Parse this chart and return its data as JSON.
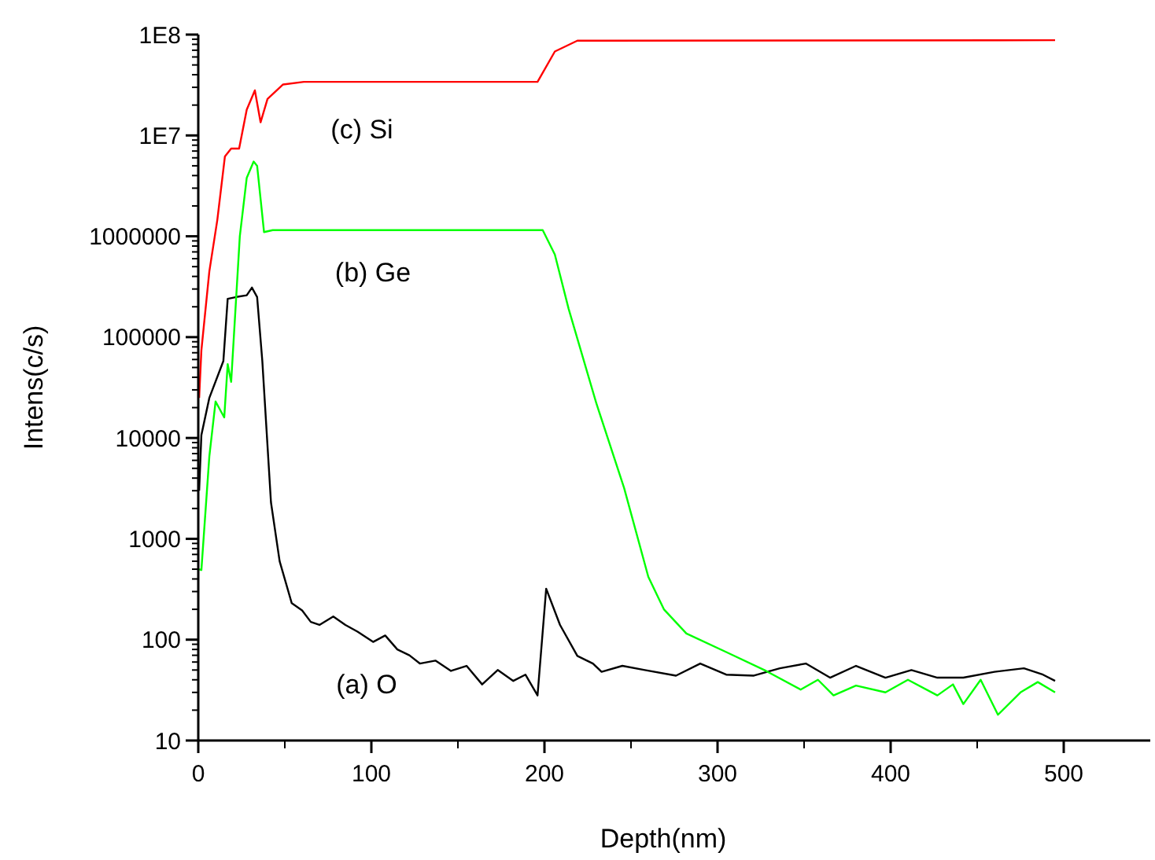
{
  "chart_data": {
    "type": "line",
    "xlabel": "Depth(nm)",
    "ylabel": "Intens(c/s)",
    "log": "y",
    "grid": false,
    "marker": "none",
    "line_style": "solid",
    "xlim": [
      0,
      550
    ],
    "ylim": [
      10,
      100000000
    ],
    "xticks": [
      0,
      {
        "value": 50,
        "label": null
      },
      100,
      {
        "value": 150,
        "label": null
      },
      200,
      {
        "value": 250,
        "label": null
      },
      300,
      {
        "value": 350,
        "label": null
      },
      400,
      {
        "value": 450,
        "label": null
      },
      500
    ],
    "yticks": [
      10,
      {
        "value": 20,
        "label": null
      },
      {
        "value": 30,
        "label": null
      },
      {
        "value": 40,
        "label": null
      },
      {
        "value": 50,
        "label": null
      },
      {
        "value": 60,
        "label": null
      },
      {
        "value": 70,
        "label": null
      },
      {
        "value": 80,
        "label": null
      },
      {
        "value": 90,
        "label": null
      },
      100,
      {
        "value": 200,
        "label": null
      },
      {
        "value": 300,
        "label": null
      },
      {
        "value": 400,
        "label": null
      },
      {
        "value": 500,
        "label": null
      },
      {
        "value": 600,
        "label": null
      },
      {
        "value": 700,
        "label": null
      },
      {
        "value": 800,
        "label": null
      },
      {
        "value": 900,
        "label": null
      },
      1000,
      {
        "value": 2000,
        "label": null
      },
      {
        "value": 3000,
        "label": null
      },
      {
        "value": 4000,
        "label": null
      },
      {
        "value": 5000,
        "label": null
      },
      {
        "value": 6000,
        "label": null
      },
      {
        "value": 7000,
        "label": null
      },
      {
        "value": 8000,
        "label": null
      },
      {
        "value": 9000,
        "label": null
      },
      10000,
      {
        "value": 20000,
        "label": null
      },
      {
        "value": 30000,
        "label": null
      },
      {
        "value": 40000,
        "label": null
      },
      {
        "value": 50000,
        "label": null
      },
      {
        "value": 60000,
        "label": null
      },
      {
        "value": 70000,
        "label": null
      },
      {
        "value": 80000,
        "label": null
      },
      {
        "value": 90000,
        "label": null
      },
      100000,
      {
        "value": 200000,
        "label": null
      },
      {
        "value": 300000,
        "label": null
      },
      {
        "value": 400000,
        "label": null
      },
      {
        "value": 500000,
        "label": null
      },
      {
        "value": 600000,
        "label": null
      },
      {
        "value": 700000,
        "label": null
      },
      {
        "value": 800000,
        "label": null
      },
      {
        "value": 900000,
        "label": null
      },
      1000000,
      {
        "value": 2000000,
        "label": null
      },
      {
        "value": 3000000,
        "label": null
      },
      {
        "value": 4000000,
        "label": null
      },
      {
        "value": 5000000,
        "label": null
      },
      {
        "value": 6000000,
        "label": null
      },
      {
        "value": 7000000,
        "label": null
      },
      {
        "value": 8000000,
        "label": null
      },
      {
        "value": 9000000,
        "label": null
      },
      {
        "value": 10000000,
        "label": "1E7"
      },
      {
        "value": 20000000,
        "label": null
      },
      {
        "value": 30000000,
        "label": null
      },
      {
        "value": 40000000,
        "label": null
      },
      {
        "value": 50000000,
        "label": null
      },
      {
        "value": 60000000,
        "label": null
      },
      {
        "value": 70000000,
        "label": null
      },
      {
        "value": 80000000,
        "label": null
      },
      {
        "value": 90000000,
        "label": null
      },
      {
        "value": 100000000,
        "label": "1E8"
      }
    ],
    "series": [
      {
        "color": "#000000",
        "x": [
          0.5,
          1.8,
          6.4,
          14.5,
          17,
          22,
          28,
          31,
          34,
          37,
          42,
          47,
          54,
          60,
          65,
          70,
          78,
          85,
          92,
          101,
          108,
          115,
          122,
          128,
          137,
          146,
          155,
          164,
          173,
          182,
          189,
          196,
          201,
          209,
          219,
          228,
          233,
          245,
          258,
          276,
          290,
          305,
          321,
          336,
          351,
          365,
          380,
          397,
          412,
          427,
          442,
          460,
          477,
          488,
          495
        ],
        "values": [
          3000,
          10700,
          25000,
          58000,
          240000,
          250000,
          260000,
          310000,
          250000,
          58000,
          2300,
          600,
          230,
          195,
          150,
          140,
          170,
          140,
          120,
          95,
          110,
          80,
          70,
          58,
          62,
          49,
          55,
          36,
          50,
          39,
          45,
          28,
          320,
          140,
          69,
          58,
          48,
          55,
          50,
          44,
          58,
          45,
          44,
          52,
          58,
          42,
          55,
          42,
          50,
          42,
          42,
          48,
          52,
          45,
          39
        ]
      },
      {
        "color": "#00ff00",
        "x": [
          0.5,
          1.8,
          6.4,
          10,
          15,
          17,
          19,
          24,
          28,
          32,
          34,
          38,
          43,
          199,
          206,
          214,
          230,
          246,
          260,
          269,
          282,
          306,
          328,
          348,
          358,
          367,
          380,
          397,
          410,
          427,
          436,
          442,
          452,
          462,
          475,
          485,
          495
        ],
        "values": [
          500,
          490,
          6600,
          23000,
          16000,
          54000,
          36000,
          1000000,
          3800000,
          5500000,
          5000000,
          1100000,
          1150000,
          1150000,
          660000,
          190000,
          22000,
          3200,
          420,
          200,
          115,
          74,
          49,
          32,
          40,
          28,
          35,
          30,
          40,
          28,
          36,
          23,
          40,
          18,
          30,
          38,
          30
        ]
      },
      {
        "color": "#ff0000",
        "x": [
          0.5,
          1.8,
          6.4,
          11,
          15.4,
          19,
          23.6,
          28,
          32.7,
          36,
          40,
          49,
          61,
          196,
          206,
          219,
          495
        ],
        "values": [
          25000,
          74000,
          450000,
          1450000,
          6200000,
          7400000,
          7400000,
          18000000,
          28000000,
          13500000,
          23000000,
          32000000,
          34000000,
          34000000,
          68000000,
          87000000,
          88000000
        ]
      }
    ],
    "annotations": [
      "(c) Si",
      "(b) Ge",
      "(a) O"
    ]
  }
}
